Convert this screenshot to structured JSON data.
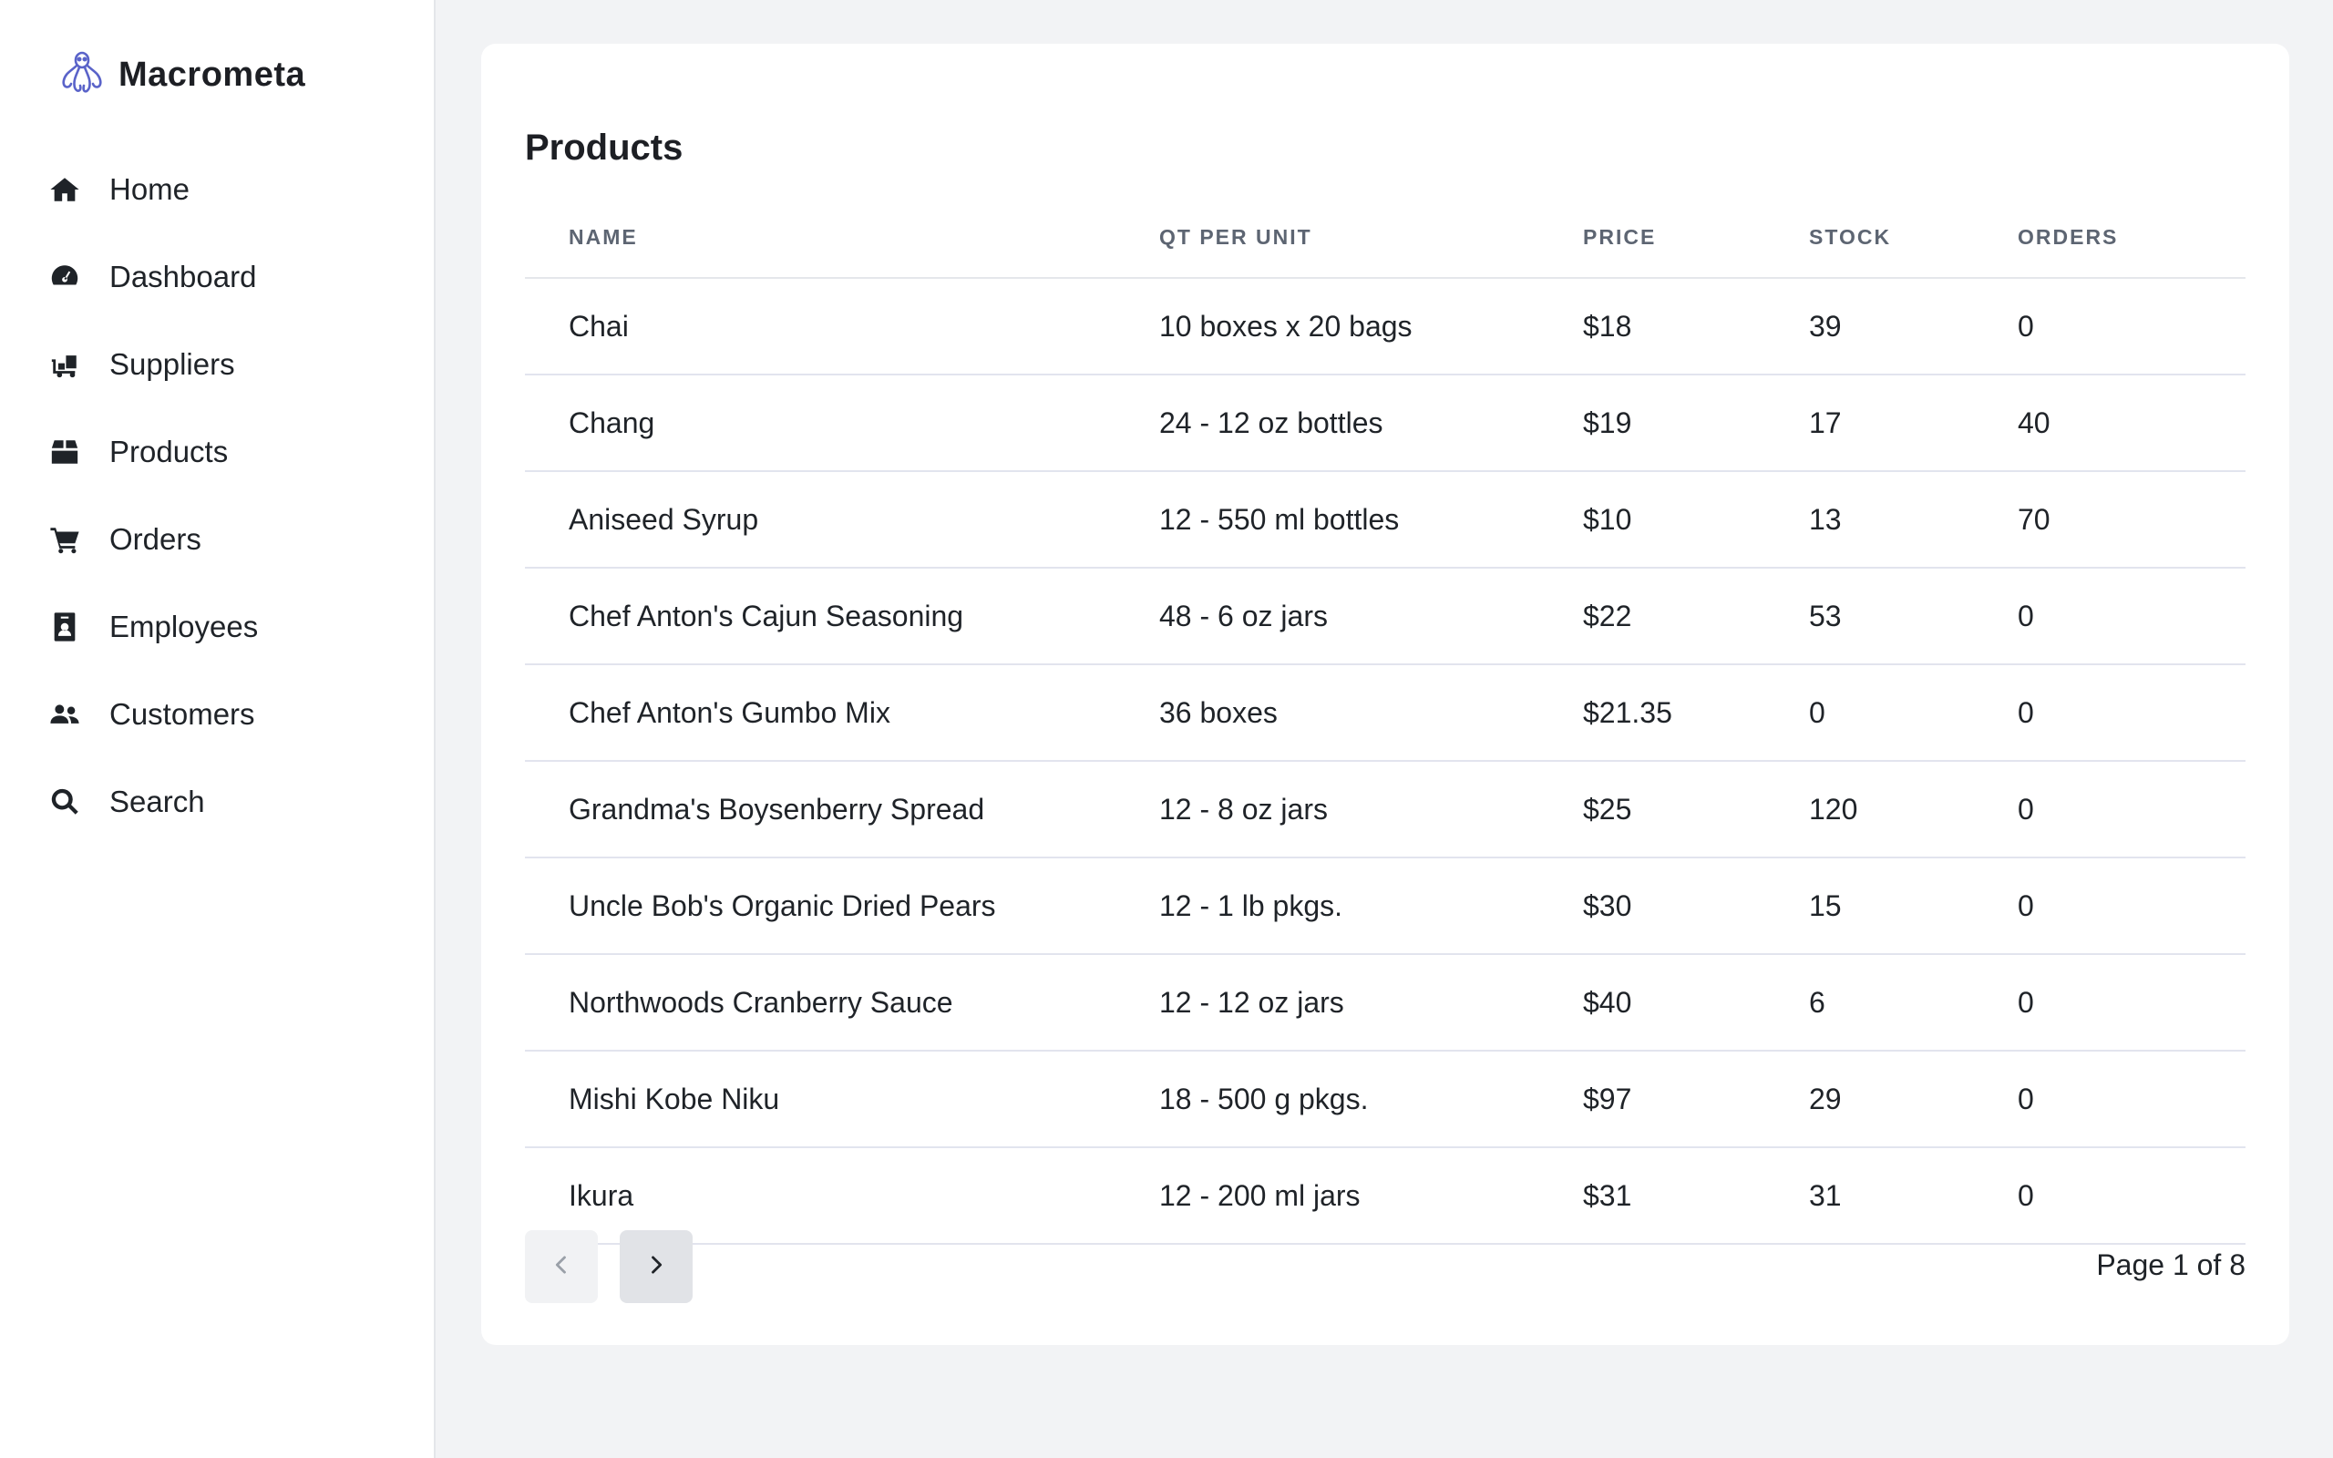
{
  "brand": {
    "name": "Macrometa",
    "logo_icon": "octopus-logo-icon"
  },
  "nav": {
    "items": [
      {
        "label": "Home",
        "icon": "home-icon"
      },
      {
        "label": "Dashboard",
        "icon": "gauge-icon"
      },
      {
        "label": "Suppliers",
        "icon": "truck-icon"
      },
      {
        "label": "Products",
        "icon": "box-icon"
      },
      {
        "label": "Orders",
        "icon": "cart-icon"
      },
      {
        "label": "Employees",
        "icon": "id-badge-icon"
      },
      {
        "label": "Customers",
        "icon": "users-icon"
      },
      {
        "label": "Search",
        "icon": "search-icon"
      }
    ]
  },
  "main": {
    "title": "Products",
    "columns": [
      "NAME",
      "QT PER UNIT",
      "PRICE",
      "STOCK",
      "ORDERS"
    ],
    "rows": [
      [
        "Chai",
        "10 boxes x 20 bags",
        "$18",
        "39",
        "0"
      ],
      [
        "Chang",
        "24 - 12 oz bottles",
        "$19",
        "17",
        "40"
      ],
      [
        "Aniseed Syrup",
        "12 - 550 ml bottles",
        "$10",
        "13",
        "70"
      ],
      [
        "Chef Anton's Cajun Seasoning",
        "48 - 6 oz jars",
        "$22",
        "53",
        "0"
      ],
      [
        "Chef Anton's Gumbo Mix",
        "36 boxes",
        "$21.35",
        "0",
        "0"
      ],
      [
        "Grandma's Boysenberry Spread",
        "12 - 8 oz jars",
        "$25",
        "120",
        "0"
      ],
      [
        "Uncle Bob's Organic Dried Pears",
        "12 - 1 lb pkgs.",
        "$30",
        "15",
        "0"
      ],
      [
        "Northwoods Cranberry Sauce",
        "12 - 12 oz jars",
        "$40",
        "6",
        "0"
      ],
      [
        "Mishi Kobe Niku",
        "18 - 500 g pkgs.",
        "$97",
        "29",
        "0"
      ],
      [
        "Ikura",
        "12 - 200 ml jars",
        "$31",
        "31",
        "0"
      ]
    ],
    "pagination": {
      "page_info": "Page 1 of 8",
      "prev_icon": "chevron-left-icon",
      "next_icon": "chevron-right-icon"
    }
  },
  "colors": {
    "accent": "#5a63c9",
    "background": "#f2f3f5",
    "card": "#ffffff"
  }
}
